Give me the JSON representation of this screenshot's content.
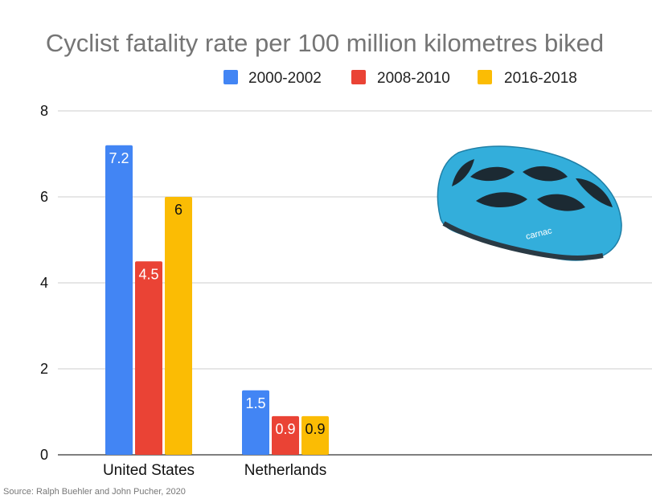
{
  "source_text": "Source: Ralph Buehler and John Pucher, 2020",
  "helmet": {
    "brand_text": "carnac",
    "color": "#33AEDB",
    "icon": "bicycle-helmet-icon"
  },
  "chart_data": {
    "type": "bar",
    "title": "Cyclist fatality rate per 100 million kilometres biked",
    "xlabel": "",
    "ylabel": "",
    "ylim": [
      0,
      8
    ],
    "yticks": [
      0,
      2,
      4,
      6,
      8
    ],
    "grid": true,
    "legend_position": "top",
    "categories": [
      "United States",
      "Netherlands"
    ],
    "series": [
      {
        "name": "2000-2002",
        "color": "#4285F4",
        "label_color": "#ffffff",
        "values": [
          7.2,
          1.5
        ]
      },
      {
        "name": "2008-2010",
        "color": "#EA4335",
        "label_color": "#ffffff",
        "values": [
          4.5,
          0.9
        ]
      },
      {
        "name": "2016-2018",
        "color": "#FBBC04",
        "label_color": "#111111",
        "values": [
          6,
          0.9
        ]
      }
    ]
  }
}
